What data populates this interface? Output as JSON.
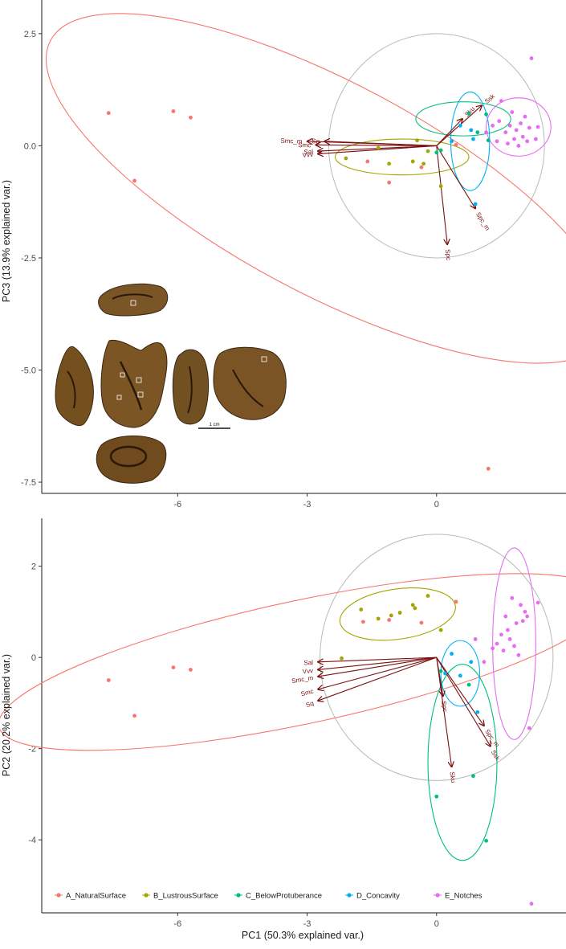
{
  "colors": {
    "A_NaturalSurface": "#F8766D",
    "B_LustrousSurface": "#A3A500",
    "C_BelowProtuberance": "#00BF7D",
    "D_Concavity": "#00B0F6",
    "E_Notches": "#E76BF3",
    "arrow": "#7A1010",
    "circle": "#B5BCB5"
  },
  "legend": {
    "items": [
      {
        "key": "A_NaturalSurface",
        "label": "A_NaturalSurface"
      },
      {
        "key": "B_LustrousSurface",
        "label": "B_LustrousSurface"
      },
      {
        "key": "C_BelowProtuberance",
        "label": "C_BelowProtuberance"
      },
      {
        "key": "D_Concavity",
        "label": "D_Concavity"
      },
      {
        "key": "E_Notches",
        "label": "E_Notches"
      }
    ]
  },
  "inset": {
    "scale_label": "1 cm",
    "alt": "photographs of the artifact in six views with sampled areas marked"
  },
  "chart_data": [
    {
      "type": "scatter",
      "title": "",
      "xlabel": "",
      "ylabel": "PC3 (13.9% explained var.)",
      "xlim": [
        -9.15,
        3.0
      ],
      "ylim": [
        -7.75,
        3.25
      ],
      "xticks": [
        -6,
        -3,
        0
      ],
      "yticks": [
        2.5,
        0.0,
        -2.5,
        -5.0,
        -7.5
      ],
      "ytick_labels": [
        "2.5",
        "0.0",
        "-2.5",
        "-5.0",
        "-7.5"
      ],
      "grid": false,
      "series": [
        {
          "name": "A_NaturalSurface",
          "x": [
            -7.6,
            -6.1,
            -5.7,
            -7.0,
            -1.6,
            -1.1,
            -0.35,
            0.45,
            1.2
          ],
          "y": [
            0.73,
            0.77,
            0.63,
            -0.78,
            -0.35,
            -0.82,
            -0.48,
            0.02,
            -7.2
          ]
        },
        {
          "name": "B_LustrousSurface",
          "x": [
            -2.1,
            -1.35,
            -1.1,
            -0.55,
            -0.45,
            -0.3,
            -0.2,
            0.1
          ],
          "y": [
            -0.28,
            -0.05,
            -0.4,
            -0.35,
            0.12,
            -0.4,
            -0.12,
            -0.9
          ]
        },
        {
          "name": "C_BelowProtuberance",
          "x": [
            0.0,
            0.1,
            0.75,
            0.95,
            1.15,
            1.2
          ],
          "y": [
            -0.15,
            -0.1,
            0.72,
            0.3,
            0.7,
            0.12
          ]
        },
        {
          "name": "D_Concavity",
          "x": [
            0.35,
            0.55,
            0.8,
            0.85,
            0.9
          ],
          "y": [
            0.1,
            0.45,
            0.35,
            0.15,
            -1.3
          ]
        },
        {
          "name": "E_Notches",
          "x": [
            1.15,
            1.3,
            1.4,
            1.45,
            1.5,
            1.6,
            1.65,
            1.7,
            1.75,
            1.8,
            1.85,
            1.9,
            1.95,
            2.0,
            2.05,
            2.1,
            2.15,
            2.2,
            2.3,
            2.35
          ],
          "y": [
            0.3,
            0.45,
            0.1,
            0.55,
            1.0,
            0.3,
            0.05,
            0.45,
            0.75,
            0.15,
            0.35,
            0.0,
            0.5,
            0.2,
            0.65,
            0.1,
            0.4,
            1.95,
            0.15,
            0.42
          ]
        }
      ],
      "ellipses": [
        {
          "group": "A_NaturalSurface",
          "cx": -2.5,
          "cy": -0.95,
          "rx": 7.3,
          "ry": 2.35,
          "angle_deg": 28
        },
        {
          "group": "B_LustrousSurface",
          "cx": -0.8,
          "cy": -0.25,
          "rx": 1.55,
          "ry": 0.4,
          "angle_deg": 0
        },
        {
          "group": "C_BelowProtuberance",
          "cx": 0.62,
          "cy": 0.6,
          "rx": 1.1,
          "ry": 0.38,
          "angle_deg": 0
        },
        {
          "group": "D_Concavity",
          "cx": 0.78,
          "cy": 0.1,
          "rx": 0.45,
          "ry": 1.1,
          "angle_deg": 0
        },
        {
          "group": "E_Notches",
          "cx": 1.9,
          "cy": 0.42,
          "rx": 0.75,
          "ry": 0.65,
          "angle_deg": 0
        }
      ],
      "circle": {
        "cx": 0,
        "cy": 0,
        "r": 2.5
      },
      "loadings": [
        {
          "label": "Smc_m",
          "x": -3.0,
          "y": 0.1
        },
        {
          "label": "Sq",
          "x": -2.6,
          "y": 0.1
        },
        {
          "label": "Smc",
          "x": -2.8,
          "y": 0.02
        },
        {
          "label": "Sal",
          "x": -2.75,
          "y": -0.12
        },
        {
          "label": "Vvv",
          "x": -2.75,
          "y": -0.18
        },
        {
          "label": "Sku",
          "x": 0.6,
          "y": 0.6
        },
        {
          "label": "Ssk",
          "x": 1.05,
          "y": 0.9
        },
        {
          "label": "Spc_m",
          "x": 0.9,
          "y": -1.4
        },
        {
          "label": "Spc",
          "x": 0.25,
          "y": -2.2
        }
      ]
    },
    {
      "type": "scatter",
      "title": "",
      "xlabel": "PC1 (50.3% explained var.)",
      "ylabel": "PC2 (20.2% explained var.)",
      "xlim": [
        -9.15,
        3.0
      ],
      "ylim": [
        -5.6,
        3.05
      ],
      "xticks": [
        -6,
        -3,
        0
      ],
      "xtick_labels": [
        "-6",
        "-3",
        "0"
      ],
      "yticks": [
        2,
        0,
        -2,
        -4
      ],
      "ytick_labels": [
        "2",
        "0",
        "-2",
        "-4"
      ],
      "grid": false,
      "legend_position": "bottom",
      "series": [
        {
          "name": "A_NaturalSurface",
          "x": [
            -7.6,
            -6.1,
            -5.7,
            -7.0,
            -1.7,
            -1.1,
            -0.35,
            0.45
          ],
          "y": [
            -0.5,
            -0.22,
            -0.27,
            -1.28,
            0.78,
            0.82,
            0.76,
            1.22
          ]
        },
        {
          "name": "B_LustrousSurface",
          "x": [
            -2.2,
            -1.75,
            -1.35,
            -1.05,
            -0.85,
            -0.55,
            -0.5,
            -0.2,
            0.1
          ],
          "y": [
            -0.02,
            1.05,
            0.85,
            0.92,
            0.98,
            1.15,
            1.08,
            1.35,
            0.6
          ]
        },
        {
          "name": "C_BelowProtuberance",
          "x": [
            0.0,
            0.1,
            0.75,
            0.85,
            1.15
          ],
          "y": [
            -3.05,
            -0.3,
            -0.6,
            -2.6,
            -4.02
          ]
        },
        {
          "name": "D_Concavity",
          "x": [
            0.2,
            0.35,
            0.55,
            0.8,
            0.95
          ],
          "y": [
            -0.35,
            0.08,
            -0.4,
            -0.1,
            -1.2
          ]
        },
        {
          "name": "E_Notches",
          "x": [
            0.9,
            1.1,
            1.3,
            1.4,
            1.5,
            1.55,
            1.6,
            1.65,
            1.7,
            1.75,
            1.8,
            1.85,
            1.9,
            1.95,
            2.0,
            2.05,
            2.1,
            2.15,
            2.2,
            2.35
          ],
          "y": [
            0.4,
            -0.1,
            0.2,
            0.3,
            0.5,
            0.15,
            0.9,
            0.6,
            0.4,
            1.3,
            0.25,
            0.75,
            0.05,
            1.15,
            0.8,
            1.0,
            0.9,
            -1.55,
            -5.4,
            1.2
          ]
        }
      ],
      "ellipses": [
        {
          "group": "A_NaturalSurface",
          "cx": -3.1,
          "cy": -0.1,
          "rx": 7.2,
          "ry": 1.35,
          "angle_deg": -12
        },
        {
          "group": "B_LustrousSurface",
          "cx": -0.9,
          "cy": 0.95,
          "rx": 1.35,
          "ry": 0.55,
          "angle_deg": -8
        },
        {
          "group": "C_BelowProtuberance",
          "cx": 0.6,
          "cy": -2.3,
          "rx": 0.8,
          "ry": 2.15,
          "angle_deg": 0
        },
        {
          "group": "D_Concavity",
          "cx": 0.55,
          "cy": -0.35,
          "rx": 0.45,
          "ry": 0.72,
          "angle_deg": 0
        },
        {
          "group": "E_Notches",
          "cx": 1.8,
          "cy": 0.3,
          "rx": 0.5,
          "ry": 2.1,
          "angle_deg": 0
        }
      ],
      "circle": {
        "cx": 0,
        "cy": 0,
        "r": 2.7
      },
      "loadings": [
        {
          "label": "Sal",
          "x": -2.75,
          "y": -0.1
        },
        {
          "label": "Vvv",
          "x": -2.75,
          "y": -0.27
        },
        {
          "label": "Smc_m",
          "x": -2.75,
          "y": -0.42
        },
        {
          "label": "Smc",
          "x": -2.75,
          "y": -0.7
        },
        {
          "label": "Sq",
          "x": -2.75,
          "y": -0.95
        },
        {
          "label": "Spc",
          "x": 0.15,
          "y": -0.85
        },
        {
          "label": "Sku",
          "x": 0.35,
          "y": -2.4
        },
        {
          "label": "Spc_m",
          "x": 1.1,
          "y": -1.5
        },
        {
          "label": "Ssk",
          "x": 1.25,
          "y": -1.95
        }
      ]
    }
  ]
}
